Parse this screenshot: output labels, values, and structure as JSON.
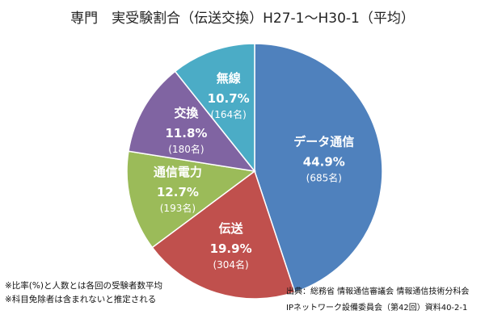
{
  "chart_data": {
    "type": "pie",
    "title": "専門　実受験割合（伝送交換）H27-1～H30-1（平均）",
    "colors": {
      "data_comm": "#4f81bd",
      "transmission": "#c0504d",
      "telecom_power": "#9bbb59",
      "switching": "#8064a2",
      "radio": "#4bacc6"
    },
    "slices": [
      {
        "label": "データ通信",
        "percent_label": "44.9%",
        "count_label": "(685名)",
        "value": 44.9,
        "count": 685
      },
      {
        "label": "伝送",
        "percent_label": "19.9%",
        "count_label": "(304名)",
        "value": 19.9,
        "count": 304
      },
      {
        "label": "通信電力",
        "percent_label": "12.7%",
        "count_label": "(193名)",
        "value": 12.7,
        "count": 193
      },
      {
        "label": "交換",
        "percent_label": "11.8%",
        "count_label": "(180名)",
        "value": 11.8,
        "count": 180
      },
      {
        "label": "無線",
        "percent_label": "10.7%",
        "count_label": "(164名)",
        "value": 10.7,
        "count": 164
      }
    ]
  },
  "notes": {
    "line1": "※比率(%)と人数とは各回の受験者数平均",
    "line2": "※科目免除者は含まれないと推定される"
  },
  "source": {
    "line1": "出典：総務省 情報通信審議会 情報通信技術分科会",
    "line2": "IPネットワーク設備委員会（第42回）資料40-2-1"
  }
}
